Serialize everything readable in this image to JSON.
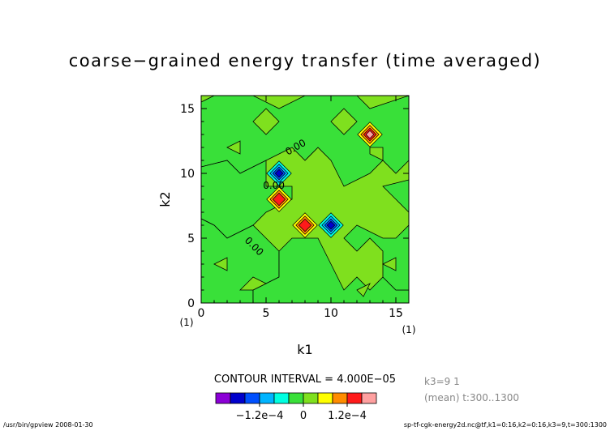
{
  "chart_data": {
    "type": "contour",
    "title": "coarse−grained energy transfer (time averaged)",
    "xlabel": "k1",
    "ylabel": "k2",
    "xlim": [
      0,
      16
    ],
    "ylim": [
      0,
      16
    ],
    "x_ticks": [
      "0",
      "5",
      "10",
      "15"
    ],
    "y_ticks": [
      "0",
      "5",
      "10",
      "15"
    ],
    "x_tick_values": [
      0,
      5,
      10,
      15
    ],
    "y_tick_values": [
      0,
      5,
      10,
      15
    ],
    "x_unit_marker": "(1)",
    "y_unit_marker": "(1)",
    "contour_interval_text": "CONTOUR INTERVAL = 4.000E−05",
    "contour_interval": 4e-05,
    "contour_label": "0.00",
    "levels": [
      -0.0002,
      -0.00016,
      -0.00012,
      -8e-05,
      -4e-05,
      0,
      4e-05,
      8e-05,
      0.00012,
      0.00016,
      0.0002
    ],
    "colorbar": {
      "colors": [
        "#8b00d6",
        "#0000cc",
        "#0050ff",
        "#00b4ff",
        "#00ffe0",
        "#39e039",
        "#7fe01e",
        "#ffff00",
        "#ff8c00",
        "#ff1a1a",
        "#ffa0a0"
      ],
      "tick_labels": [
        "−1.2e−4",
        "0",
        "1.2e−4"
      ],
      "tick_values": [
        -0.00012,
        0,
        0.00012
      ]
    },
    "features": [
      {
        "k1": 6,
        "k2": 10,
        "sign": "negative",
        "peak": -0.00016
      },
      {
        "k1": 10,
        "k2": 6,
        "sign": "negative",
        "peak": -0.00016
      },
      {
        "k1": 13,
        "k2": 13,
        "sign": "positive",
        "peak": 0.00016
      },
      {
        "k1": 6,
        "k2": 8,
        "sign": "positive",
        "peak": 0.00012
      },
      {
        "k1": 8,
        "k2": 6,
        "sign": "positive",
        "peak": 0.00012
      }
    ]
  },
  "info": {
    "slice": "k3=9  1",
    "mean": "(mean) t:300..1300"
  },
  "footer": {
    "left": "/usr/bin/gpview   2008-01-30",
    "right": "sp-tf-cgk-energy2d.nc@tf,k1=0:16,k2=0:16,k3=9,t=300:1300"
  }
}
